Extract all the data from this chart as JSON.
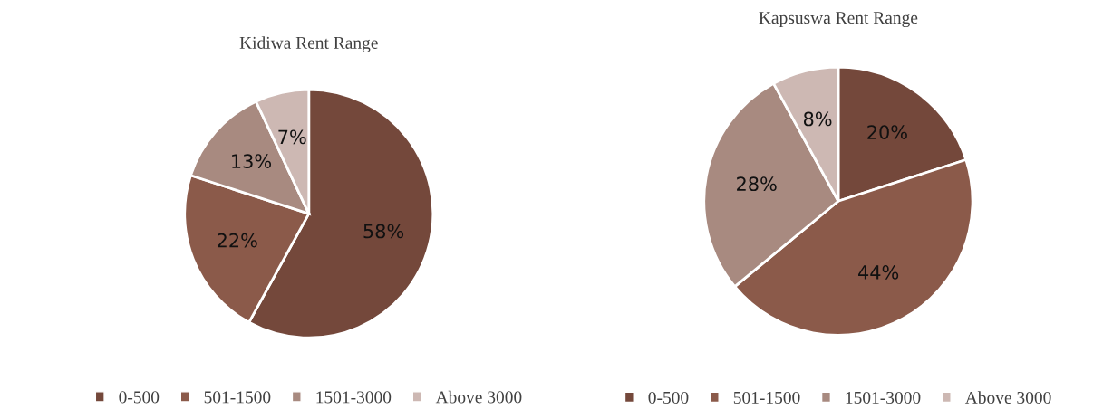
{
  "chart_data": [
    {
      "type": "pie",
      "title": "Kidiwa Rent Range",
      "categories": [
        "0-500",
        "501-1500",
        "1501-3000",
        "Above 3000"
      ],
      "values": [
        58,
        22,
        13,
        7
      ],
      "value_labels": [
        "58%",
        "22%",
        "13%",
        "7%"
      ],
      "colors": [
        "#74483b",
        "#8b5a4a",
        "#a88a80",
        "#cdb8b3"
      ],
      "legend": "bottom"
    },
    {
      "type": "pie",
      "title": "Kapsuswa Rent Range",
      "categories": [
        "0-500",
        "501-1500",
        "1501-3000",
        "Above 3000"
      ],
      "values": [
        20,
        44,
        28,
        8
      ],
      "value_labels": [
        "20%",
        "44%",
        "28%",
        "8%"
      ],
      "colors": [
        "#74483b",
        "#8b5a4a",
        "#a88a80",
        "#cdb8b3"
      ],
      "legend": "bottom"
    }
  ]
}
